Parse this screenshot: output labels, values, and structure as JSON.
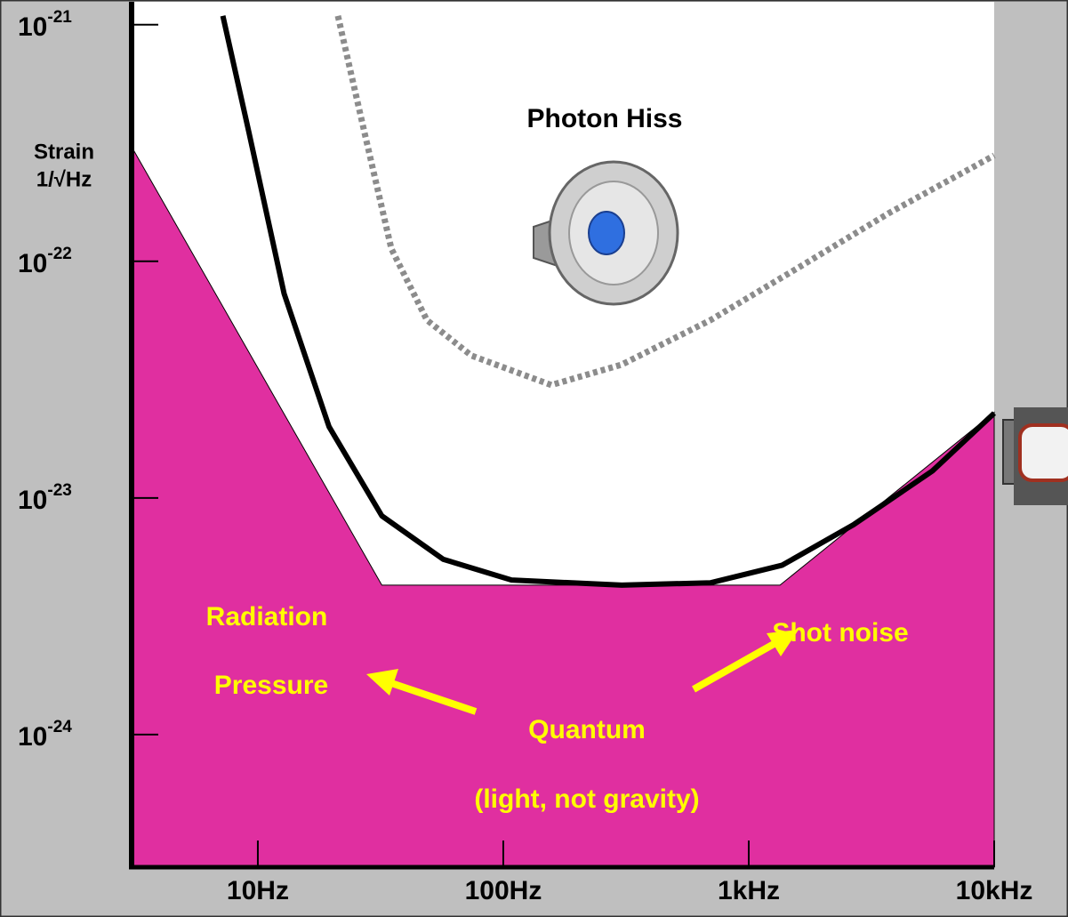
{
  "chart_data": {
    "type": "line",
    "xscale": "log",
    "yscale": "log",
    "ylabel": [
      "Strain",
      "1/√Hz"
    ],
    "xlim": [
      3.06,
      10000
    ],
    "ylim": [
      2.75e-25,
      1.25e-21
    ],
    "xticks": [
      {
        "value": 10,
        "label": "10Hz"
      },
      {
        "value": 100,
        "label": "100Hz"
      },
      {
        "value": 1000,
        "label": "1kHz"
      },
      {
        "value": 10000,
        "label": "10kHz"
      }
    ],
    "yticks": [
      {
        "value": 1e-21,
        "label": "10",
        "exponent": "-21"
      },
      {
        "value": 1e-22,
        "label": "10",
        "exponent": "-22"
      },
      {
        "value": 1e-23,
        "label": "10",
        "exponent": "-23"
      },
      {
        "value": 1e-24,
        "label": "10",
        "exponent": "-24"
      }
    ],
    "series": [
      {
        "style": "area",
        "color": "#e02fa0",
        "x": [
          3.06,
          32,
          1340,
          10000
        ],
        "values": [
          3.05e-22,
          4.28e-24,
          4.28e-24,
          2.3e-23
        ]
      },
      {
        "style": "dotted",
        "color": "#8c8c8c",
        "x": [
          21.2,
          27.2,
          35,
          48.8,
          74,
          157,
          304,
          700,
          1620,
          3730,
          10000
        ],
        "values": [
          1.09e-21,
          3.5e-22,
          1.13e-22,
          5.65e-23,
          4e-23,
          3e-23,
          3.66e-23,
          5.65e-23,
          9.5e-23,
          1.6e-22,
          2.8e-22
        ]
      },
      {
        "style": "solid",
        "color": "#000000",
        "x": [
          7.2,
          9.2,
          12.8,
          19.5,
          32,
          57,
          108,
          304,
          700,
          1370,
          2670,
          5600,
          10000
        ],
        "values": [
          1.09e-21,
          3.5e-22,
          7.3e-23,
          2e-23,
          8.4e-24,
          5.5e-24,
          4.5e-24,
          4.28e-24,
          4.38e-24,
          5.2e-24,
          7.7e-24,
          1.3e-23,
          2.28e-23
        ]
      }
    ],
    "annotations": [
      "Photon Hiss",
      "Radiation",
      "Pressure",
      "Shot noise",
      "Quantum",
      "(light, not gravity)"
    ]
  }
}
